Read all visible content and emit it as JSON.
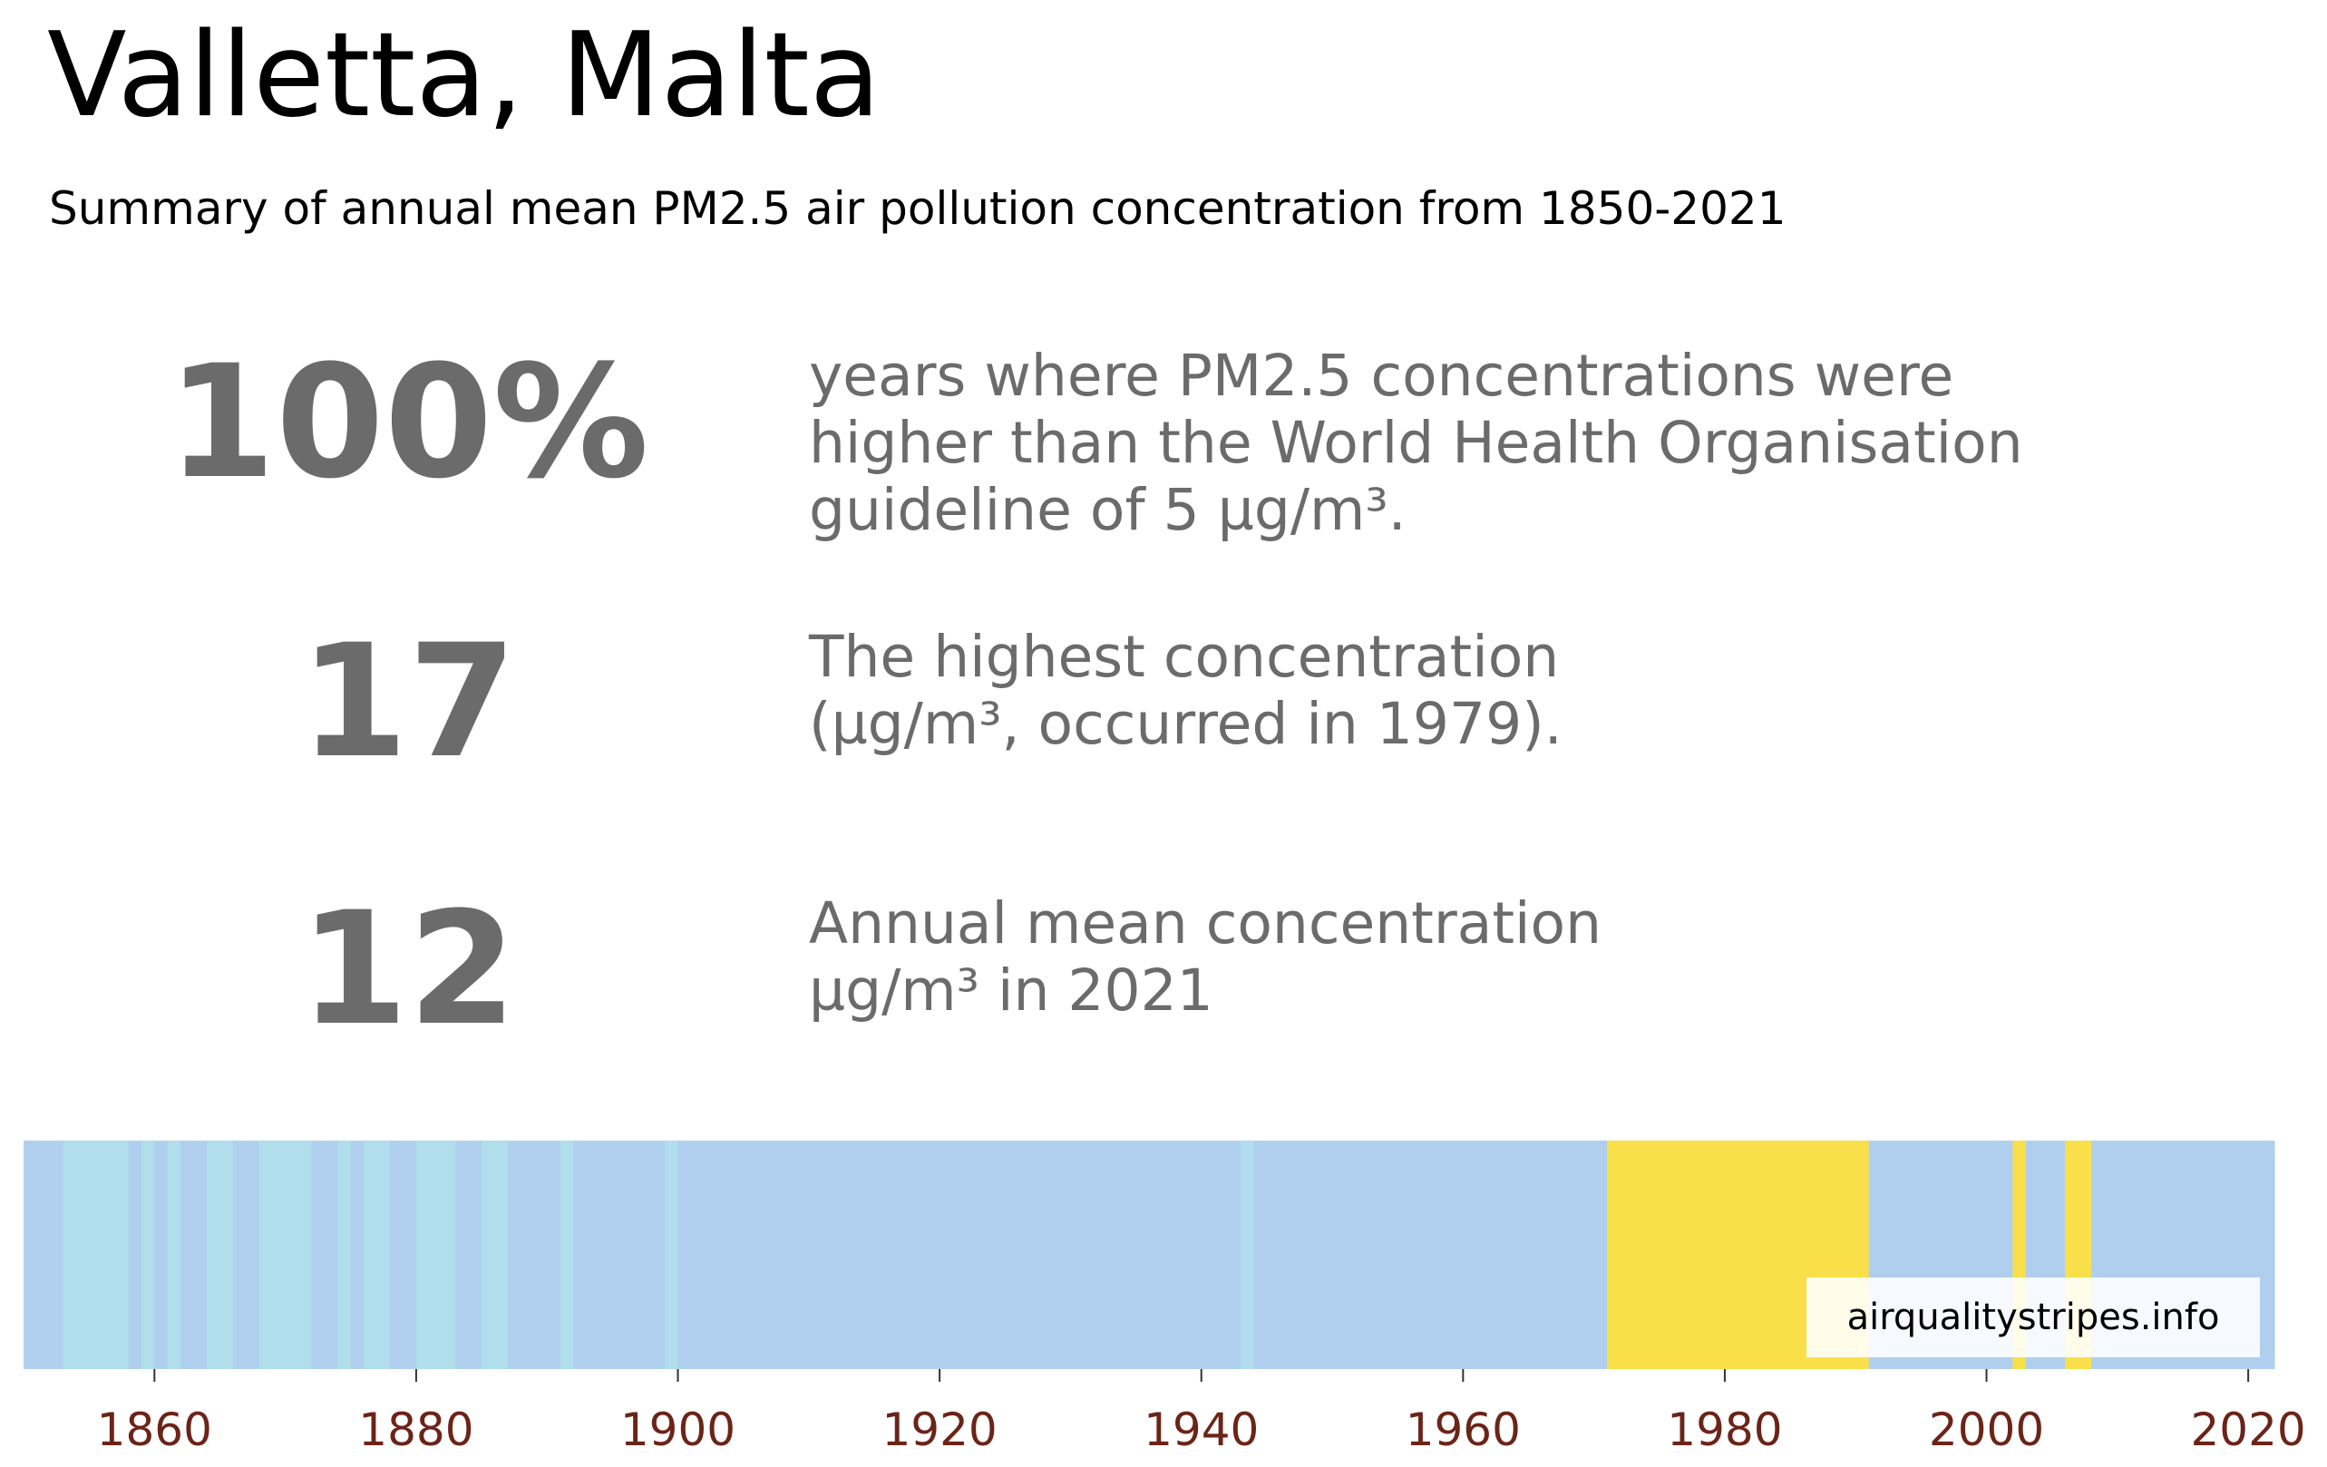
{
  "header": {
    "title": "Valletta, Malta",
    "subtitle": "Summary of annual mean PM2.5 air pollution concentration from 1850-2021"
  },
  "stats": [
    {
      "value": "100%",
      "description": "years where PM2.5 concentrations were\nhigher than the World Health Organisation\nguideline of 5 µg/m³."
    },
    {
      "value": "17",
      "description": "The highest concentration\n(µg/m³, occurred in 1979)."
    },
    {
      "value": "12",
      "description": "Annual mean concentration\nµg/m³ in 2021"
    }
  ],
  "watermark": "airqualitystripes.info",
  "colors": {
    "stat_gray": "#6b6b6b",
    "tick_label": "#6b2418",
    "band_low": "#b0deea",
    "band_mid": "#b0cfee",
    "band_high": "#f9e04a"
  },
  "chart_data": {
    "type": "heatmap",
    "title": "",
    "xlabel": "",
    "ylabel": "",
    "xlim": [
      1850,
      2022
    ],
    "x_ticks": [
      1860,
      1880,
      1900,
      1920,
      1940,
      1960,
      1980,
      2000,
      2020
    ],
    "grid": false,
    "legend": "none",
    "stripes": [
      {
        "start": 1850,
        "end": 1851,
        "level": "mid"
      },
      {
        "start": 1851,
        "end": 1853,
        "level": "mid"
      },
      {
        "start": 1853,
        "end": 1858,
        "level": "low"
      },
      {
        "start": 1858,
        "end": 1859,
        "level": "mid"
      },
      {
        "start": 1859,
        "end": 1860,
        "level": "low"
      },
      {
        "start": 1860,
        "end": 1861,
        "level": "mid"
      },
      {
        "start": 1861,
        "end": 1862,
        "level": "low"
      },
      {
        "start": 1862,
        "end": 1864,
        "level": "mid"
      },
      {
        "start": 1864,
        "end": 1866,
        "level": "low"
      },
      {
        "start": 1866,
        "end": 1868,
        "level": "mid"
      },
      {
        "start": 1868,
        "end": 1872,
        "level": "low"
      },
      {
        "start": 1872,
        "end": 1874,
        "level": "mid"
      },
      {
        "start": 1874,
        "end": 1875,
        "level": "low"
      },
      {
        "start": 1875,
        "end": 1876,
        "level": "mid"
      },
      {
        "start": 1876,
        "end": 1878,
        "level": "low"
      },
      {
        "start": 1878,
        "end": 1880,
        "level": "mid"
      },
      {
        "start": 1880,
        "end": 1883,
        "level": "low"
      },
      {
        "start": 1883,
        "end": 1885,
        "level": "mid"
      },
      {
        "start": 1885,
        "end": 1887,
        "level": "low"
      },
      {
        "start": 1887,
        "end": 1891,
        "level": "mid"
      },
      {
        "start": 1891,
        "end": 1892,
        "level": "low"
      },
      {
        "start": 1892,
        "end": 1899,
        "level": "mid"
      },
      {
        "start": 1899,
        "end": 1900,
        "level": "low"
      },
      {
        "start": 1900,
        "end": 1943,
        "level": "mid"
      },
      {
        "start": 1943,
        "end": 1944,
        "level": "low"
      },
      {
        "start": 1944,
        "end": 1971,
        "level": "mid"
      },
      {
        "start": 1971,
        "end": 1991,
        "level": "high"
      },
      {
        "start": 1991,
        "end": 2002,
        "level": "mid"
      },
      {
        "start": 2002,
        "end": 2003,
        "level": "high"
      },
      {
        "start": 2003,
        "end": 2006,
        "level": "mid"
      },
      {
        "start": 2006,
        "end": 2008,
        "level": "high"
      },
      {
        "start": 2008,
        "end": 2022,
        "level": "mid"
      }
    ]
  }
}
